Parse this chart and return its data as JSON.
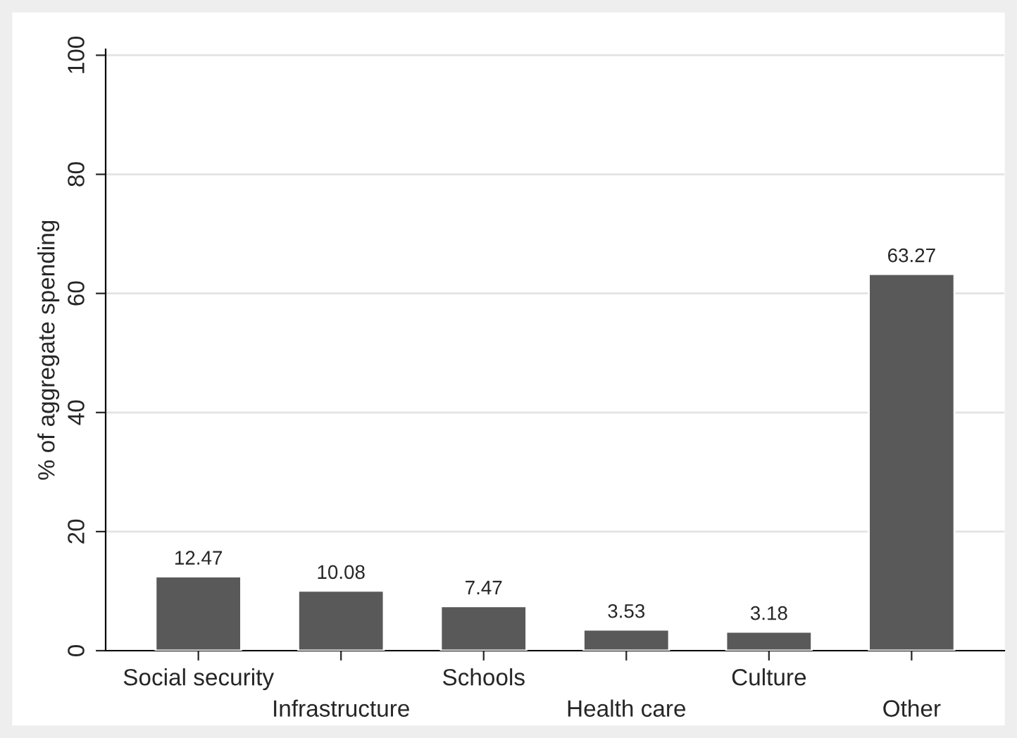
{
  "chart_data": {
    "type": "bar",
    "ylabel": "% of aggregate spending",
    "categories": [
      "Social security",
      "Infrastructure",
      "Schools",
      "Health care",
      "Culture",
      "Other"
    ],
    "values": [
      12.47,
      10.08,
      7.47,
      3.53,
      3.18,
      63.27
    ],
    "color": "#595959",
    "data_labels": true,
    "ylim": [
      0,
      101
    ],
    "yticks": [
      0,
      20,
      40,
      60,
      80,
      100
    ],
    "grid": "y"
  }
}
